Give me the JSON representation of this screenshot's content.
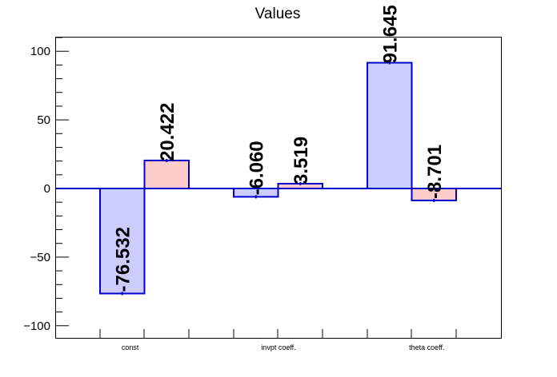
{
  "chart_data": {
    "type": "bar",
    "title": "Values",
    "xlabel": "",
    "ylabel": "",
    "categories": [
      "const",
      "invpt coeff.",
      "theta coeff."
    ],
    "ylim": [
      -110,
      110
    ],
    "yticks": [
      "100",
      "50",
      "0",
      "−50",
      "−100"
    ],
    "grid": false,
    "series": [
      {
        "values": [
          -76.532,
          -6.06,
          91.645
        ],
        "labels": [
          "-76.532",
          "-6.060",
          "91.645"
        ],
        "color": "#ccccff"
      },
      {
        "values": [
          20.422,
          3.519,
          -8.701
        ],
        "labels": [
          "20.422",
          "3.519",
          "-8.701"
        ],
        "color": "#ffcccc"
      }
    ],
    "edge_color": "#0000cc"
  }
}
